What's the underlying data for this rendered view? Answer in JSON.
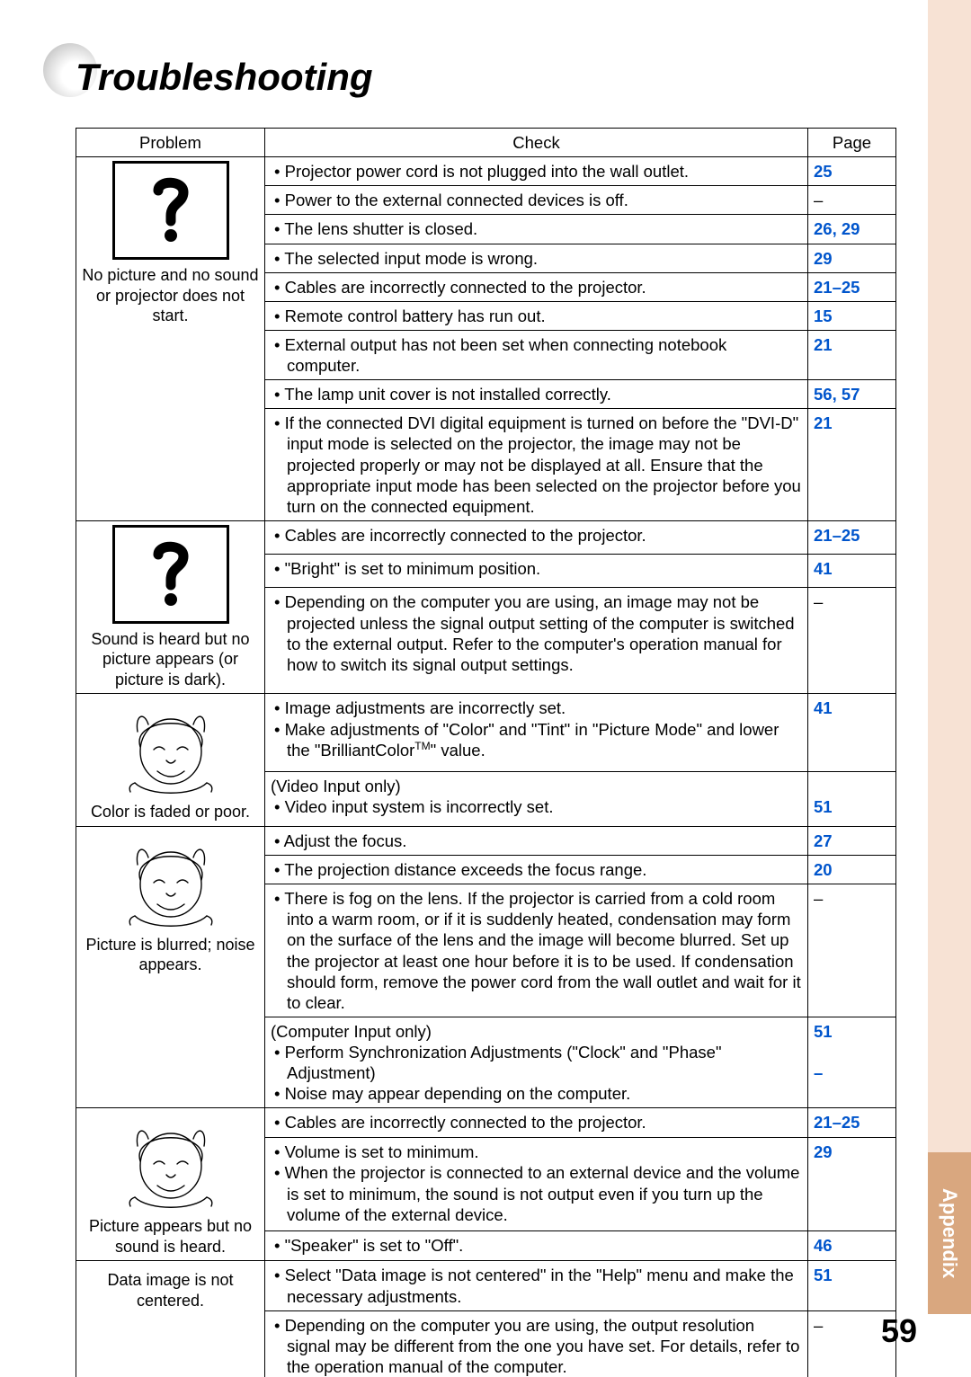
{
  "title": "Troubleshooting",
  "side_tab": "Appendix",
  "page_number": "59",
  "headers": {
    "problem": "Problem",
    "check": "Check",
    "page": "Page"
  },
  "colors": {
    "link": "#0055cc",
    "tab_bg": "#f7e2d4",
    "tab_label_bg": "#d9a77f"
  },
  "sections": [
    {
      "label": "No picture and no sound or projector does not start.",
      "icon": "question",
      "rows": [
        {
          "check": "• Projector power cord is not plugged into the wall outlet.",
          "page": "25"
        },
        {
          "check": "• Power to the external connected devices is off.",
          "page": "–"
        },
        {
          "check": "• The lens shutter is closed.",
          "page": "26, 29"
        },
        {
          "check": "• The selected input mode is wrong.",
          "page": "29"
        },
        {
          "check": "• Cables are incorrectly connected to the projector.",
          "page": "21–25"
        },
        {
          "check": "• Remote control battery has run out.",
          "page": "15"
        },
        {
          "check": "• External output has not been set when connecting notebook computer.",
          "page": "21"
        },
        {
          "check": "• The lamp unit cover is not installed correctly.",
          "page": "56, 57"
        },
        {
          "check": "• If the connected DVI digital equipment is turned on before the \"DVI-D\" input mode is selected on the projector, the image may not be projected properly or may not be displayed at all. Ensure that the appropriate input mode has been selected on the projector before you turn on the connected equipment.",
          "page": "21"
        }
      ]
    },
    {
      "label": "Sound is heard but no picture appears (or picture is dark).",
      "icon": "question",
      "rows": [
        {
          "check": "• Cables are incorrectly connected to the projector.",
          "page": "21–25"
        },
        {
          "check": "• \"Bright\" is set to minimum position.",
          "page": "41"
        },
        {
          "check": "• Depending on the computer you are using, an image may not be projected unless the signal output setting of the computer is switched to the external output. Refer to the computer's operation manual for how to switch its signal output settings.",
          "page": "–"
        }
      ]
    },
    {
      "label": "Color is faded or poor.",
      "icon": "face",
      "rows": [
        {
          "check": "• Image adjustments are incorrectly set.\n• Make adjustments of \"Color\" and \"Tint\" in \"Picture Mode\" and lower the \"BrilliantColor™\" value.",
          "page": "41"
        },
        {
          "check": "(Video Input only)\n• Video input system is incorrectly set.",
          "page": "\n51"
        }
      ]
    },
    {
      "label": "Picture is blurred; noise appears.",
      "icon": "face",
      "rows": [
        {
          "check": "• Adjust the focus.",
          "page": "27"
        },
        {
          "check": "• The projection distance exceeds the focus range.",
          "page": "20"
        },
        {
          "check": "• There is fog on the lens. If the projector is carried from a cold room into a warm room, or if it is suddenly heated, condensation may form on the surface of the lens and the image will become blurred. Set up the projector at least one hour before it is to be used. If condensation should form, remove the power cord from the wall outlet and wait for it to clear.",
          "page": "–"
        },
        {
          "check": "(Computer Input only)\n• Perform Synchronization Adjustments (\"Clock\" and \"Phase\" Adjustment)\n• Noise may appear depending on the computer.",
          "page": "51\n\n–"
        }
      ]
    },
    {
      "label": "Picture appears but no sound is heard.",
      "icon": "face",
      "rows": [
        {
          "check": "• Cables are incorrectly connected to the projector.",
          "page": "21–25"
        },
        {
          "check": "• Volume is set to minimum.\n• When the projector is connected to an external device and the volume is set to minimum, the sound is not output even if you turn up the volume of the external device.",
          "page": "29"
        },
        {
          "check": "• \"Speaker\" is set to \"Off\".",
          "page": "46"
        }
      ]
    },
    {
      "label": "Data image is not centered.",
      "icon": "none",
      "rows": [
        {
          "check": "• Select \"Data image is not centered\" in the \"Help\" menu and make the necessary adjustments.",
          "page": "51"
        },
        {
          "check": "• Depending on the computer you are using, the output resolution signal may be different from the one you have set. For details, refer to the operation manual of the computer.",
          "page": "–"
        }
      ]
    }
  ]
}
